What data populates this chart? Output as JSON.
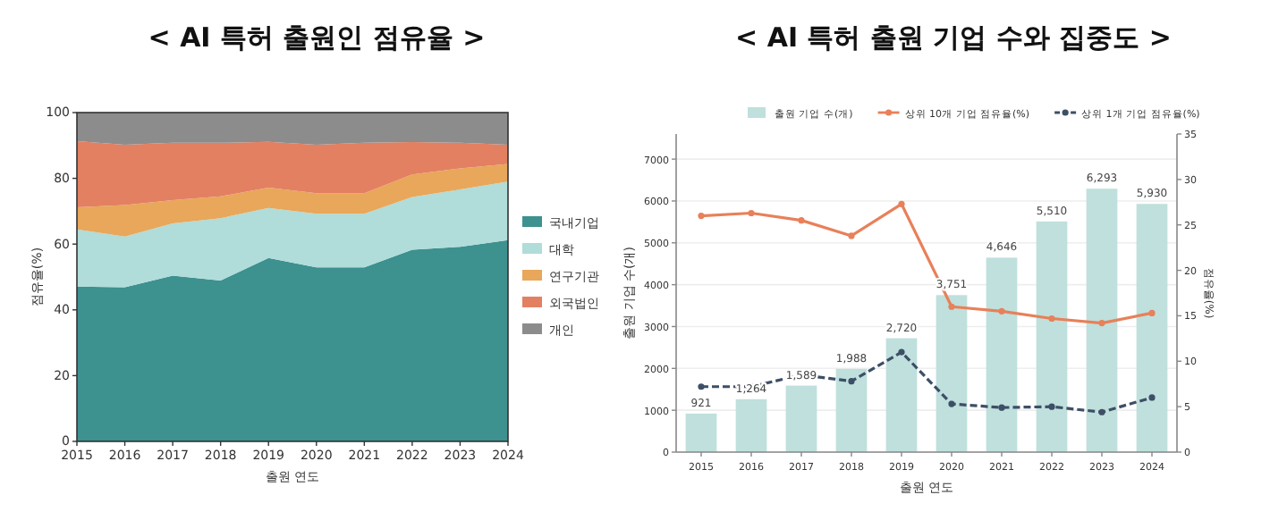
{
  "chart_data": [
    {
      "type": "area",
      "title": "< AI 특허 출원인 점유율 >",
      "xlabel": "출원 연도",
      "ylabel": "점유율(%)",
      "stacked": true,
      "legend": "right",
      "grid": false,
      "categories": [
        "2015",
        "2016",
        "2017",
        "2018",
        "2019",
        "2020",
        "2021",
        "2022",
        "2023",
        "2024"
      ],
      "ylim": [
        0,
        100
      ],
      "yticks": [
        0,
        20,
        40,
        60,
        80,
        100
      ],
      "series": [
        {
          "name": "국내기업",
          "color": "#3d918f",
          "values": [
            47.1,
            46.9,
            50.4,
            48.9,
            55.8,
            52.9,
            52.9,
            58.3,
            59.2,
            61.2
          ]
        },
        {
          "name": "대학",
          "color": "#b0dcd9",
          "values": [
            17.4,
            15.4,
            15.9,
            19.0,
            15.2,
            16.3,
            16.3,
            16.0,
            17.4,
            17.8
          ]
        },
        {
          "name": "연구기관",
          "color": "#e8a75a",
          "values": [
            6.7,
            9.6,
            7.1,
            6.6,
            6.2,
            6.3,
            6.3,
            6.9,
            6.4,
            5.4
          ]
        },
        {
          "name": "외국법인",
          "color": "#e38062",
          "values": [
            20.1,
            18.3,
            17.4,
            16.3,
            13.9,
            14.7,
            15.3,
            9.8,
            7.8,
            5.8
          ]
        },
        {
          "name": "개인",
          "color": "#8c8c8c",
          "values": [
            8.7,
            9.8,
            9.2,
            9.2,
            8.9,
            9.8,
            9.2,
            9.0,
            9.2,
            9.8
          ]
        }
      ]
    },
    {
      "type": "bar",
      "title": "< AI 특허 출원 기업 수와 집중도 >",
      "xlabel": "출원 연도",
      "ylabel": "출원 기업 수(개)",
      "y2label": "점유율(%)",
      "legend": "top",
      "grid": "y",
      "marker": "circle",
      "categories": [
        "2015",
        "2016",
        "2017",
        "2018",
        "2019",
        "2020",
        "2021",
        "2022",
        "2023",
        "2024"
      ],
      "ylim": [
        0,
        7600
      ],
      "yticks": [
        0,
        1000,
        2000,
        3000,
        4000,
        5000,
        6000,
        7000
      ],
      "y2lim": [
        0,
        35
      ],
      "y2ticks": [
        0,
        5,
        10,
        15,
        20,
        25,
        30,
        35
      ],
      "series": [
        {
          "name": "출원 기업 수(개)",
          "type": "bar",
          "color": "#bfe0dc",
          "values": [
            921,
            1264,
            1589,
            1988,
            2720,
            3751,
            4646,
            5510,
            6293,
            5930
          ],
          "value_labels": [
            "921",
            "1,264",
            "1,589",
            "1,988",
            "2,720",
            "3,751",
            "4,646",
            "5,510",
            "6,293",
            "5,930"
          ]
        },
        {
          "name": "상위 10개 기업 점유율(%)",
          "type": "line",
          "axis": "y2",
          "line_style": "solid",
          "color": "#e8805a",
          "values": [
            26.0,
            26.3,
            25.5,
            23.8,
            27.3,
            16.0,
            15.5,
            14.7,
            14.2,
            15.3
          ]
        },
        {
          "name": "상위 1개 기업 점유율(%)",
          "type": "line",
          "axis": "y2",
          "line_style": "dashed",
          "color": "#3d4f66",
          "values": [
            7.2,
            7.2,
            8.5,
            7.8,
            11.0,
            5.3,
            4.9,
            5.0,
            4.4,
            6.0
          ]
        }
      ]
    }
  ]
}
